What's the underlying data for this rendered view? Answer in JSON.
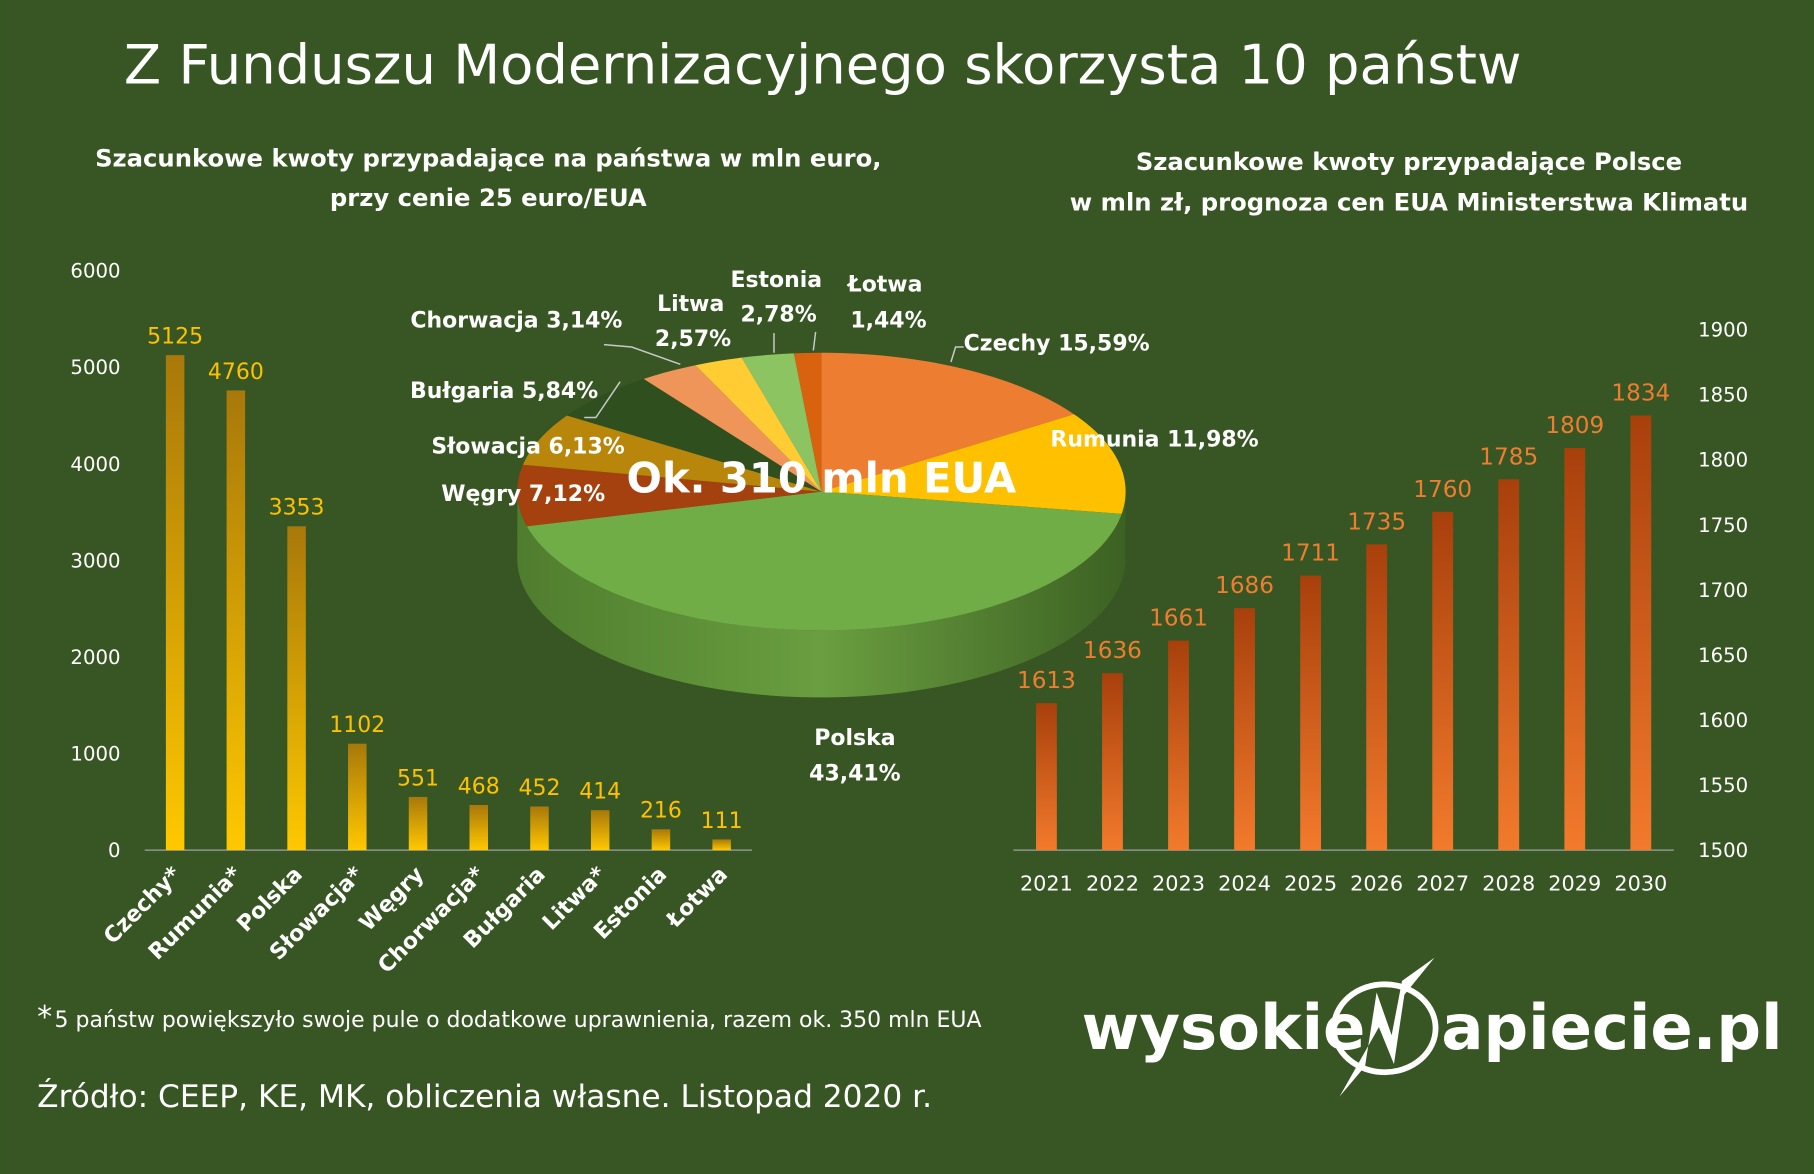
{
  "title": "Z Funduszu Modernizacyjnego skorzysta 10 państw",
  "left_subtitle": [
    "Szacunkowe kwoty przypadające  na państwa w mln euro,",
    "przy cenie 25 euro/EUA"
  ],
  "right_subtitle": [
    "Szacunkowe kwoty przypadające Polsce",
    "w mln zł, prognoza cen EUA Ministerstwa Klimatu"
  ],
  "footnote_mark": "*",
  "footnote": "5 państw powiększyło swoje pule o dodatkowe uprawnienia, razem ok. 350 mln EUA",
  "source": "Źródło: CEEP, KE, MK, obliczenia własne. Listopad 2020 r.",
  "logo": {
    "left": "wysokie",
    "right": "apiecie.pl",
    "glyph": "N"
  },
  "colors": {
    "background": "#375623",
    "bar_left": "#ffc000",
    "bar_right": "#ed7d31"
  },
  "chart_data": [
    {
      "type": "bar",
      "categories": [
        "Czechy*",
        "Rumunia*",
        "Polska",
        "Słowacja*",
        "Węgry",
        "Chorwacja*",
        "Bułgaria",
        "Litwa*",
        "Estonia",
        "Łotwa"
      ],
      "values": [
        5125,
        4760,
        3353,
        1102,
        551,
        468,
        452,
        414,
        216,
        111
      ],
      "ylim": [
        0,
        6000
      ],
      "yticks": [
        "0",
        "1000",
        "2000",
        "3000",
        "4000",
        "5000",
        "6000"
      ],
      "data_labels": true,
      "grid": false
    },
    {
      "type": "pie",
      "center_label": "Ok. 310 mln EUA",
      "slices": [
        {
          "name": "Czechy",
          "value": 15.59,
          "label": "15,59%",
          "color": "#ed7d31"
        },
        {
          "name": "Rumunia",
          "value": 11.98,
          "label": "11,98%",
          "color": "#ffc000"
        },
        {
          "name": "Polska",
          "value": 43.41,
          "label": "43,41%",
          "color": "#70ad47"
        },
        {
          "name": "Węgry",
          "value": 7.12,
          "label": "7,12%",
          "color": "#a5400f"
        },
        {
          "name": "Słowacja",
          "value": 6.13,
          "label": "6,13%",
          "color": "#b8860b"
        },
        {
          "name": "Bułgaria",
          "value": 5.84,
          "label": "5,84%",
          "color": "#2f4f1e"
        },
        {
          "name": "Chorwacja",
          "value": 3.14,
          "label": "3,14%",
          "color": "#f0955a"
        },
        {
          "name": "Litwa",
          "value": 2.57,
          "label": "2,57%",
          "color": "#ffcd33"
        },
        {
          "name": "Estonia",
          "value": 2.78,
          "label": "2,78%",
          "color": "#8cc462"
        },
        {
          "name": "Łotwa",
          "value": 1.44,
          "label": "1,44%",
          "color": "#d9620f"
        }
      ]
    },
    {
      "type": "bar",
      "categories": [
        "2021",
        "2022",
        "2023",
        "2024",
        "2025",
        "2026",
        "2027",
        "2028",
        "2029",
        "2030"
      ],
      "values": [
        1613,
        1636,
        1661,
        1686,
        1711,
        1735,
        1760,
        1785,
        1809,
        1834
      ],
      "ylim": [
        1500,
        1900
      ],
      "yticks": [
        "1500",
        "1550",
        "1600",
        "1650",
        "1700",
        "1750",
        "1800",
        "1850",
        "1900"
      ],
      "y_axis_side": "right",
      "data_labels": true,
      "grid": false
    }
  ]
}
